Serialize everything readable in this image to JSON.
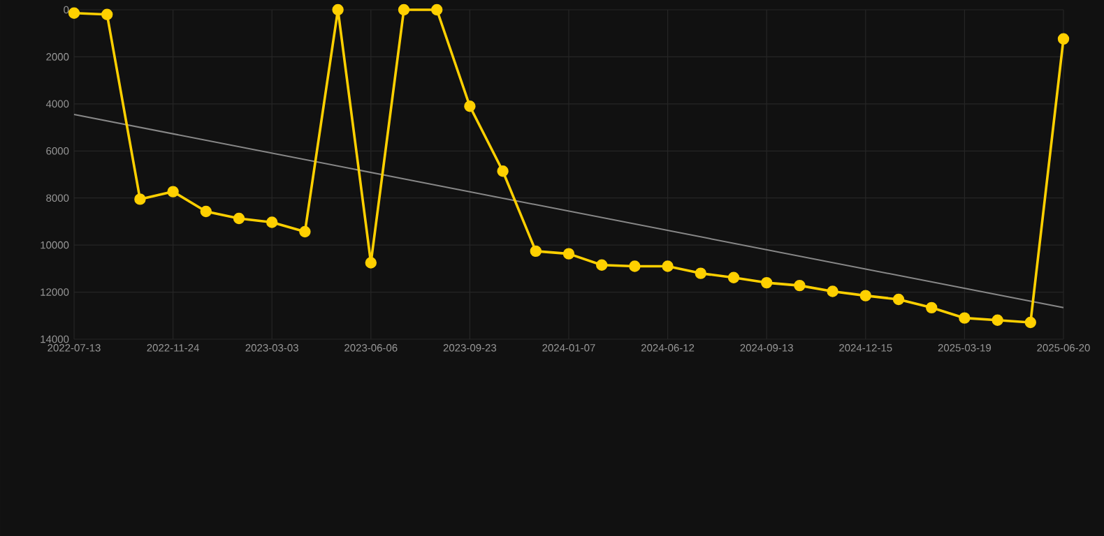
{
  "chart_data": {
    "type": "line",
    "categories": [
      "2022-07-13",
      null,
      null,
      "2022-11-24",
      null,
      null,
      "2023-03-03",
      null,
      null,
      "2023-06-06",
      null,
      null,
      "2023-09-23",
      null,
      null,
      "2024-01-07",
      null,
      null,
      "2024-06-12",
      null,
      null,
      "2024-09-13",
      null,
      null,
      "2024-12-15",
      null,
      null,
      "2025-03-19",
      null,
      null,
      "2025-06-20"
    ],
    "series": [
      {
        "color": "#ffd000",
        "marker": "circle",
        "values": [
          140,
          200,
          8050,
          7730,
          8570,
          8870,
          9030,
          9430,
          0,
          10750,
          0,
          0,
          4100,
          6860,
          10260,
          10370,
          10850,
          10900,
          10900,
          11200,
          11380,
          11600,
          11720,
          11970,
          12150,
          12310,
          12660,
          13100,
          13190,
          13290,
          1240
        ]
      },
      {
        "color": "#888888",
        "marker": "none",
        "values": [
          4450,
          null,
          null,
          null,
          null,
          null,
          null,
          null,
          null,
          null,
          null,
          null,
          null,
          null,
          null,
          null,
          null,
          null,
          null,
          null,
          null,
          null,
          null,
          null,
          null,
          null,
          null,
          null,
          null,
          null,
          12660
        ]
      }
    ],
    "ylim": [
      14000,
      0
    ],
    "yticks": [
      0,
      2000,
      4000,
      6000,
      8000,
      10000,
      12000,
      14000
    ],
    "grid": true
  }
}
